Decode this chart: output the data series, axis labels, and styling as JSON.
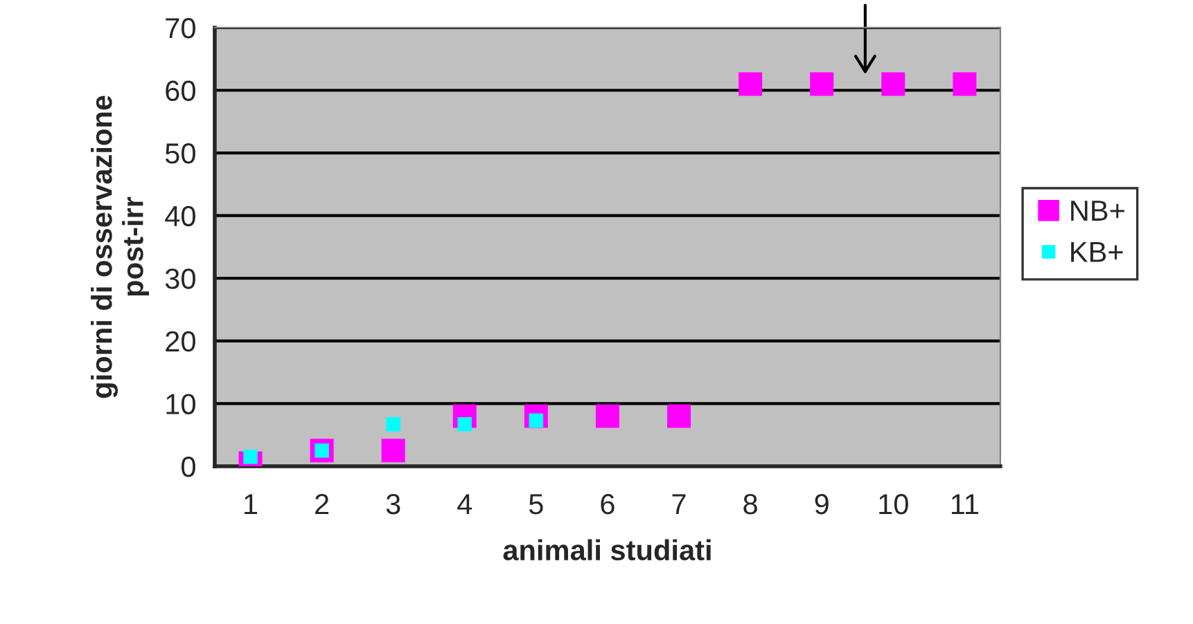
{
  "chart_data": {
    "type": "scatter",
    "xlabel": "animali studiati",
    "ylabel": "giorni di osservazione\npost-irr",
    "categories": [
      "1",
      "2",
      "3",
      "4",
      "5",
      "6",
      "7",
      "8",
      "9",
      "10",
      "11"
    ],
    "series": [
      {
        "name": "NB+",
        "color": "#ff00ff",
        "values": [
          0.5,
          2.5,
          2.5,
          8,
          8,
          8,
          8,
          61,
          61,
          61,
          61
        ]
      },
      {
        "name": "KB+",
        "color": "#00ffff",
        "values": [
          1.5,
          2.5,
          6.7,
          6.7,
          7.3,
          null,
          null,
          null,
          null,
          null,
          null
        ]
      }
    ],
    "ylim": [
      0,
      70
    ],
    "yticks": [
      0,
      10,
      20,
      30,
      40,
      50,
      60,
      70
    ],
    "grid": "y",
    "legend": "right",
    "marker": "square"
  }
}
